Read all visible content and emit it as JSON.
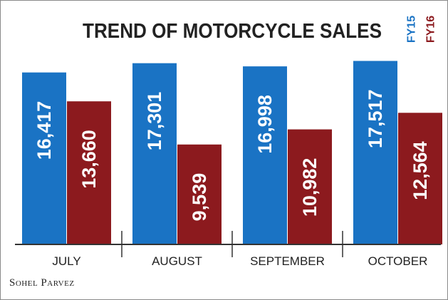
{
  "colors": {
    "FY15": "#1a73c4",
    "FY16": "#8c1a1e",
    "text": "#222222",
    "value_text": "#ffffff",
    "axis": "#333333"
  },
  "credit": "Sohel Parvez",
  "chart_data": {
    "type": "bar",
    "title": "TREND OF MOTORCYCLE SALES",
    "categories": [
      "JULY",
      "AUGUST",
      "SEPTEMBER",
      "OCTOBER"
    ],
    "series": [
      {
        "name": "FY15",
        "values": [
          16417,
          17301,
          16998,
          17517
        ],
        "labels": [
          "16,417",
          "17,301",
          "16,998",
          "17,517"
        ]
      },
      {
        "name": "FY16",
        "values": [
          13660,
          9539,
          10982,
          12564
        ],
        "labels": [
          "13,660",
          "9,539",
          "10,982",
          "12,564"
        ]
      }
    ],
    "ylim": [
      0,
      19000
    ],
    "legend": "top-right",
    "grid": false
  }
}
